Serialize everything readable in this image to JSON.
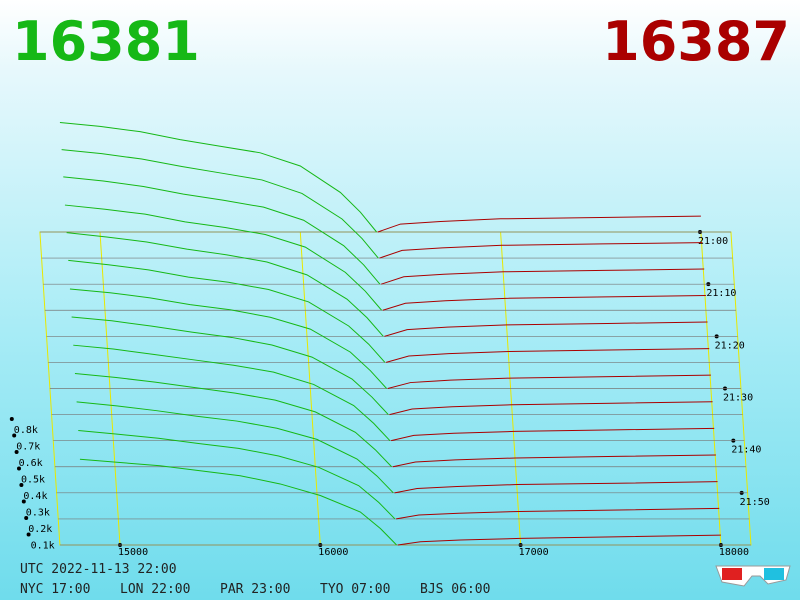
{
  "chart_data": {
    "type": "depth3d",
    "bid_price": 16381,
    "ask_price": 16387,
    "bid_color": "#16b816",
    "ask_color": "#aa0000",
    "xlim": [
      14700,
      18150
    ],
    "xticks": [
      15000,
      16000,
      17000,
      18000
    ],
    "yticks": [
      {
        "value": 100,
        "label": "0.1k"
      },
      {
        "value": 200,
        "label": "0.2k"
      },
      {
        "value": 300,
        "label": "0.3k"
      },
      {
        "value": 400,
        "label": "0.4k"
      },
      {
        "value": 500,
        "label": "0.5k"
      },
      {
        "value": 600,
        "label": "0.6k"
      },
      {
        "value": 700,
        "label": "0.7k"
      },
      {
        "value": 800,
        "label": "0.8k"
      }
    ],
    "times": [
      "21:00",
      "21:10",
      "21:20",
      "21:30",
      "21:40",
      "21:50"
    ],
    "timestamp": "UTC 2022-11-13 22:00",
    "clocks": [
      "NYC 17:00",
      "LON 22:00",
      "PAR 23:00",
      "TYO 07:00",
      "BJS 06:00"
    ],
    "bid_prices": [
      16381,
      16300,
      16200,
      16000,
      15800,
      15600,
      15400,
      15200,
      15000,
      14800
    ],
    "ask_prices": [
      16387,
      16500,
      16700,
      17000,
      17500,
      18000
    ],
    "snapshots": [
      {
        "bids": [
          0,
          150,
          300,
          500,
          600,
          650,
          700,
          760,
          800,
          830
        ],
        "asks": [
          0,
          60,
          80,
          100,
          110,
          120
        ]
      },
      {
        "bids": [
          0,
          145,
          290,
          480,
          580,
          630,
          680,
          735,
          775,
          805
        ],
        "asks": [
          0,
          57,
          76,
          95,
          105,
          115
        ]
      },
      {
        "bids": [
          0,
          140,
          280,
          465,
          560,
          610,
          655,
          710,
          750,
          780
        ],
        "asks": [
          0,
          54,
          72,
          90,
          100,
          110
        ]
      },
      {
        "bids": [
          0,
          135,
          270,
          450,
          540,
          590,
          630,
          685,
          720,
          750
        ],
        "asks": [
          0,
          50,
          68,
          85,
          95,
          105
        ]
      },
      {
        "bids": [
          0,
          130,
          260,
          430,
          520,
          570,
          610,
          660,
          695,
          725
        ],
        "asks": [
          0,
          47,
          64,
          80,
          90,
          100
        ]
      },
      {
        "bids": [
          0,
          125,
          250,
          415,
          500,
          550,
          585,
          635,
          670,
          700
        ],
        "asks": [
          0,
          44,
          60,
          75,
          85,
          95
        ]
      },
      {
        "bids": [
          0,
          120,
          245,
          400,
          480,
          530,
          565,
          610,
          645,
          670
        ],
        "asks": [
          0,
          40,
          56,
          70,
          80,
          90
        ]
      },
      {
        "bids": [
          0,
          115,
          235,
          380,
          460,
          510,
          545,
          585,
          620,
          645
        ],
        "asks": [
          0,
          37,
          52,
          65,
          75,
          85
        ]
      },
      {
        "bids": [
          0,
          112,
          228,
          365,
          445,
          490,
          525,
          560,
          595,
          620
        ],
        "asks": [
          0,
          34,
          48,
          60,
          70,
          80
        ]
      },
      {
        "bids": [
          0,
          108,
          220,
          350,
          425,
          470,
          505,
          540,
          570,
          595
        ],
        "asks": [
          0,
          30,
          44,
          56,
          66,
          75
        ]
      },
      {
        "bids": [
          0,
          105,
          212,
          335,
          405,
          450,
          480,
          515,
          545,
          570
        ],
        "asks": [
          0,
          27,
          40,
          52,
          60,
          70
        ]
      },
      {
        "bids": [
          0,
          102,
          205,
          318,
          388,
          435,
          465,
          497,
          522,
          545
        ],
        "asks": [
          0,
          24,
          35,
          46,
          55,
          65
        ]
      },
      {
        "bids": [
          0,
          100,
          200,
          300,
          370,
          420,
          450,
          480,
          500,
          520
        ],
        "asks": [
          0,
          20,
          30,
          40,
          50,
          60
        ]
      }
    ]
  }
}
